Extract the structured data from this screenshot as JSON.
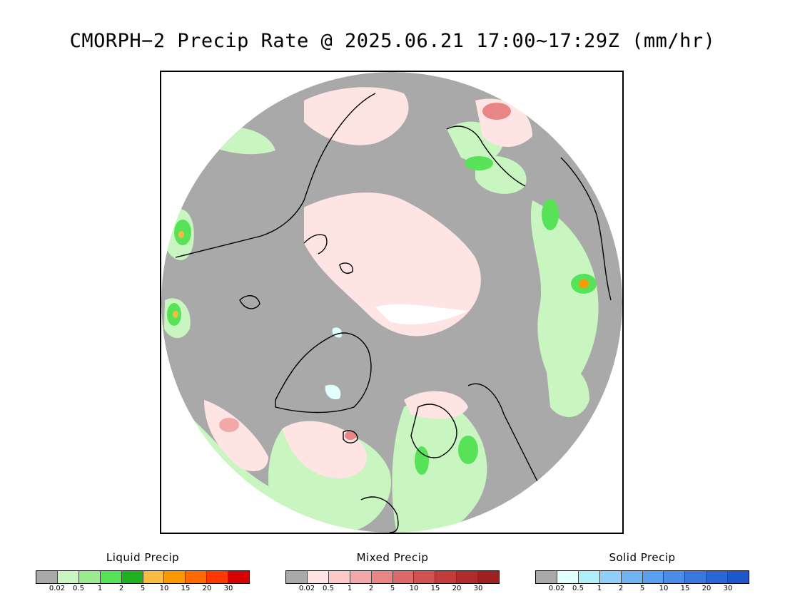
{
  "title": "CMORPH−2 Precip Rate @ 2025.06.21 17:00~17:29Z (mm/hr)",
  "map": {
    "projection": "north-polar-stereographic",
    "no_precip_color": "#a9a9a9",
    "coastline_color": "#000000"
  },
  "legends": [
    {
      "title": "Liquid Precip",
      "colors": [
        "#a9a9a9",
        "#c8f5c0",
        "#98ec8e",
        "#58e258",
        "#22b022",
        "#f8bc40",
        "#fb9a00",
        "#ff6a00",
        "#ff3800",
        "#d80000"
      ],
      "ticks": [
        "0.02",
        "0.5",
        "1",
        "2",
        "5",
        "10",
        "15",
        "20",
        "30"
      ]
    },
    {
      "title": "Mixed Precip",
      "colors": [
        "#a9a9a9",
        "#ffe4e4",
        "#fdc8c8",
        "#f2a8a8",
        "#e88686",
        "#dd6a6a",
        "#d25252",
        "#c23c3c",
        "#b02c2c",
        "#9e2020"
      ],
      "ticks": [
        "0.02",
        "0.5",
        "1",
        "2",
        "5",
        "10",
        "15",
        "20",
        "30"
      ]
    },
    {
      "title": "Solid Precip",
      "colors": [
        "#a9a9a9",
        "#e0ffff",
        "#aef0f8",
        "#90d0f8",
        "#70b4f4",
        "#5aa0ee",
        "#4a8ce6",
        "#3a78de",
        "#2a66d6",
        "#1c58cc"
      ],
      "ticks": [
        "0.02",
        "0.5",
        "1",
        "2",
        "5",
        "10",
        "15",
        "20",
        "30"
      ]
    }
  ]
}
